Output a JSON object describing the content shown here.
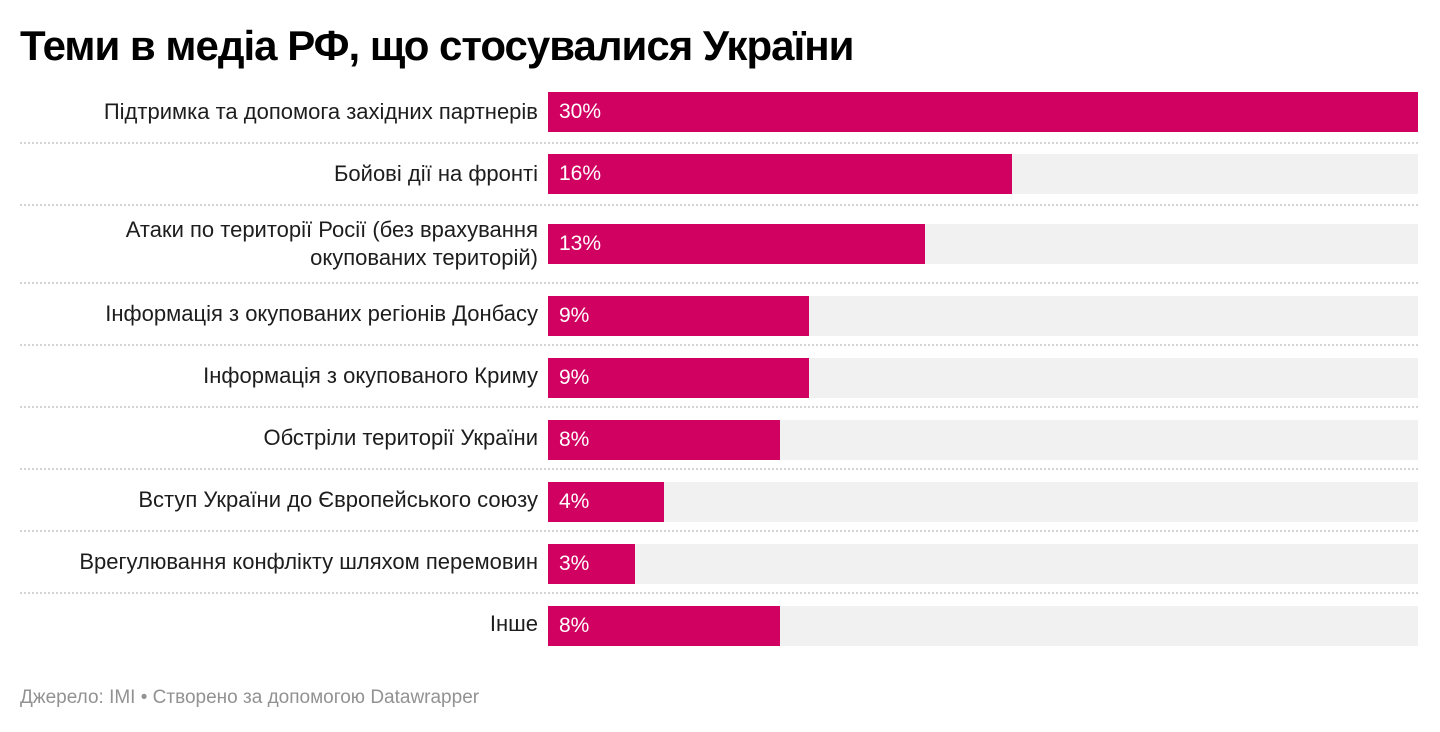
{
  "chart_data": {
    "type": "bar",
    "orientation": "horizontal",
    "title": "Теми в медіа РФ, що стосувалися України",
    "categories": [
      "Підтримка та допомога західних партнерів",
      "Бойові дії на фронті",
      "Атаки по території Росії (без врахування окупованих територій)",
      "Інформація з окупованих регіонів Донбасу",
      "Інформація з окупованого Криму",
      "Обстріли території України",
      "Вступ України до Європейського союзу",
      "Врегулювання конфлікту шляхом перемовин",
      "Інше"
    ],
    "values": [
      30,
      16,
      13,
      9,
      9,
      8,
      4,
      3,
      8
    ],
    "value_labels": [
      "30%",
      "16%",
      "13%",
      "9%",
      "9%",
      "8%",
      "4%",
      "3%",
      "8%"
    ],
    "unit": "%",
    "xlim": [
      0,
      30
    ],
    "bar_color": "#d10161",
    "track_color": "#f1f1f1",
    "grid": false,
    "legend": "none",
    "source": "Джерело: IMI • Створено за допомогою Datawrapper"
  }
}
